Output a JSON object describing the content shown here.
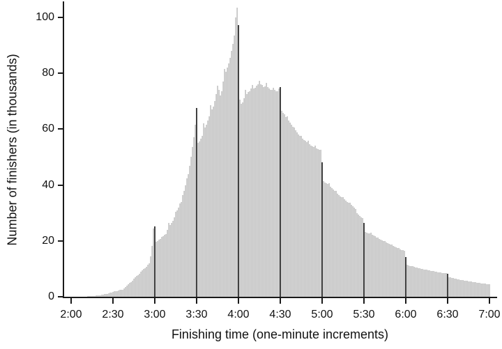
{
  "figure": {
    "background": "#ffffff"
  },
  "chart_data": {
    "type": "bar",
    "title": "",
    "xlabel": "Finishing time (one-minute increments)",
    "ylabel": "Number of finishers (in thousands)",
    "x_tick_labels": [
      "2:00",
      "2:30",
      "3:00",
      "3:30",
      "4:00",
      "4:30",
      "5:00",
      "5:30",
      "6:00",
      "6:30",
      "7:00"
    ],
    "y_tick_values": [
      0,
      20,
      40,
      60,
      80,
      100
    ],
    "ylim": [
      0,
      105
    ],
    "grid": "off",
    "legend": "none",
    "bin_minutes": 1,
    "first_bar_time": "2:01",
    "last_bar_time": "7:00",
    "highlight_times": [
      "3:00",
      "3:30",
      "4:00",
      "4:30",
      "5:00",
      "5:30",
      "6:00",
      "6:30"
    ],
    "highlight_minutes_after_2h": [
      60,
      90,
      120,
      150,
      180,
      210,
      240,
      270
    ],
    "peak": {
      "time": "3:59",
      "value": 103.5
    },
    "values_are_minutes_after_2h_1_to_300": true,
    "values": [
      0,
      0,
      0,
      0,
      0,
      0,
      0,
      0,
      0.05,
      0.1,
      0.1,
      0.15,
      0.2,
      0.2,
      0.25,
      0.3,
      0.35,
      0.4,
      0.45,
      0.5,
      0.6,
      0.7,
      0.8,
      0.9,
      1,
      1.1,
      1.25,
      1.4,
      1.6,
      1.8,
      1.9,
      2,
      2.1,
      2.25,
      2.4,
      2.5,
      2.6,
      3,
      3.5,
      4,
      4.5,
      4.9,
      5.3,
      5.75,
      6.4,
      7,
      7.4,
      7.8,
      8.25,
      8.9,
      9.5,
      9.9,
      10.3,
      10.75,
      11.4,
      12,
      14.5,
      18.25,
      24.5,
      25.25,
      19.75,
      20,
      20.5,
      20.75,
      21.5,
      21.75,
      22.25,
      22.5,
      24,
      26.5,
      25.75,
      26.5,
      27.25,
      28.5,
      30.5,
      31,
      32,
      33.5,
      34,
      36.5,
      38,
      40,
      42.5,
      44,
      47,
      50,
      53.5,
      57,
      61.5,
      67.5,
      55,
      55.5,
      56.5,
      57.5,
      62,
      60.5,
      61.5,
      63,
      64.5,
      68.5,
      67,
      68,
      70,
      72.5,
      75.5,
      74,
      72,
      73.5,
      77,
      81.5,
      80.5,
      82,
      83.5,
      85.5,
      88,
      90.5,
      93.5,
      100,
      103.5,
      97.25,
      70.5,
      69,
      69.5,
      71,
      74,
      72.5,
      73.25,
      73.5,
      74.5,
      75.75,
      74.5,
      74.75,
      75.5,
      76,
      77.25,
      76,
      75.75,
      75,
      75.25,
      76.5,
      75,
      74.5,
      74,
      74,
      74.75,
      74,
      73.5,
      73.5,
      74.5,
      75,
      66.5,
      65.75,
      65.25,
      64.25,
      64.5,
      63,
      62.25,
      61.5,
      60.75,
      60.5,
      59.5,
      58.75,
      58,
      57.5,
      57.5,
      56.5,
      56,
      55.75,
      55.25,
      55.75,
      54.5,
      54,
      53.75,
      53.5,
      54,
      53,
      52.75,
      52.5,
      52.5,
      48.25,
      41.5,
      41,
      40.75,
      40.5,
      40.75,
      39.5,
      39,
      38.5,
      38,
      38,
      37,
      36.5,
      36,
      35.75,
      35.75,
      35,
      34.5,
      34,
      33.75,
      33.75,
      33,
      32.5,
      32,
      31.5,
      30,
      29.5,
      29,
      28.5,
      28.25,
      26.5,
      23.25,
      23,
      22.75,
      22.75,
      23,
      22.25,
      22,
      21.75,
      21.25,
      21.25,
      20.75,
      20.5,
      20.25,
      20,
      20,
      19.5,
      19.25,
      19,
      18.75,
      18.75,
      18.25,
      18,
      17.75,
      17.5,
      17.5,
      17,
      16.75,
      16.75,
      16.5,
      14.25,
      11.5,
      11.25,
      11,
      11,
      11,
      10.75,
      10.5,
      10.5,
      10.25,
      10.25,
      10,
      10,
      9.75,
      9.75,
      9.75,
      9.5,
      9.5,
      9.25,
      9.25,
      9.25,
      9,
      9,
      8.75,
      8.75,
      8.75,
      8.5,
      8.5,
      8.5,
      8.5,
      8.25,
      7,
      7,
      6.75,
      6.75,
      6.5,
      6.5,
      6.25,
      6.25,
      6,
      6,
      6,
      5.75,
      5.75,
      5.75,
      5.5,
      5.5,
      5.5,
      5.25,
      5.25,
      5.25,
      5,
      5,
      5,
      4.75,
      4.75,
      4.75,
      4.75,
      4.5,
      4.5,
      4.5
    ],
    "bar_color": "#d6d6d6",
    "bar_edge_color": "#c6c6c6",
    "highlight_bar_color": "#454545",
    "axis_color": "#1a1a1a"
  }
}
